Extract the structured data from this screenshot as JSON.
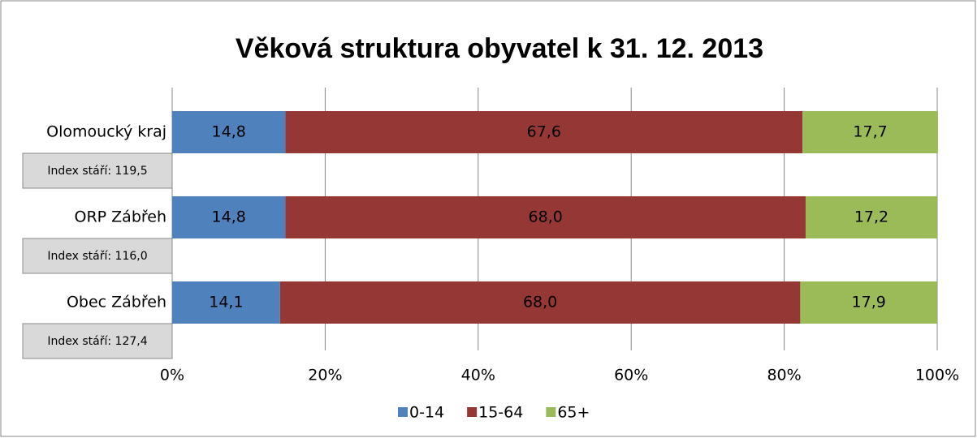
{
  "chart_data": {
    "type": "stacked_barh",
    "title": "Věková struktura obyvatel k 31. 12. 2013",
    "categories": [
      "Olomoucký kraj",
      "ORP Zábřeh",
      "Obec Zábřeh"
    ],
    "annotations": [
      "Index stáří: 119,5",
      "Index stáří: 116,0",
      "Index stáří: 127,4"
    ],
    "series": [
      {
        "name": "0-14",
        "color": "#4f81bd",
        "values": [
          14.8,
          14.8,
          14.1
        ],
        "value_labels": [
          "14,8",
          "14,8",
          "14,1"
        ]
      },
      {
        "name": "15-64",
        "color": "#953735",
        "values": [
          67.6,
          68.0,
          68.0
        ],
        "value_labels": [
          "67,6",
          "68,0",
          "68,0"
        ]
      },
      {
        "name": "65+",
        "color": "#9bbb59",
        "values": [
          17.7,
          17.2,
          17.9
        ],
        "value_labels": [
          "17,7",
          "17,2",
          "17,9"
        ]
      }
    ],
    "xlim": [
      0,
      100
    ],
    "xticks": [
      {
        "value": 0,
        "label": "0%"
      },
      {
        "value": 20,
        "label": "20%"
      },
      {
        "value": 40,
        "label": "40%"
      },
      {
        "value": 60,
        "label": "60%"
      },
      {
        "value": 80,
        "label": "80%"
      },
      {
        "value": 100,
        "label": "100%"
      }
    ],
    "grid": true,
    "legend": "bottom"
  }
}
